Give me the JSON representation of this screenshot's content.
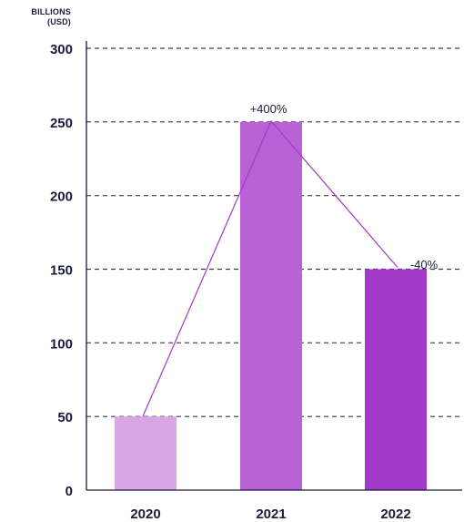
{
  "chart_data": {
    "type": "bar",
    "unit_label": [
      "BILLIONS",
      "(USD)"
    ],
    "categories": [
      "2020",
      "2021",
      "2022"
    ],
    "values": [
      50,
      250,
      150
    ],
    "ylim": [
      0,
      300
    ],
    "yticks": [
      0,
      50,
      100,
      150,
      200,
      250,
      300
    ],
    "grid": true,
    "trend_line": true,
    "annotations": [
      "",
      "+400%",
      "-40%"
    ],
    "colors": {
      "bars": [
        "#d7a6e3",
        "#b962d6",
        "#a238c6"
      ],
      "trend_line": "#a238c6",
      "grid": "#3a3a4a",
      "text": "#1b1b3a"
    }
  }
}
